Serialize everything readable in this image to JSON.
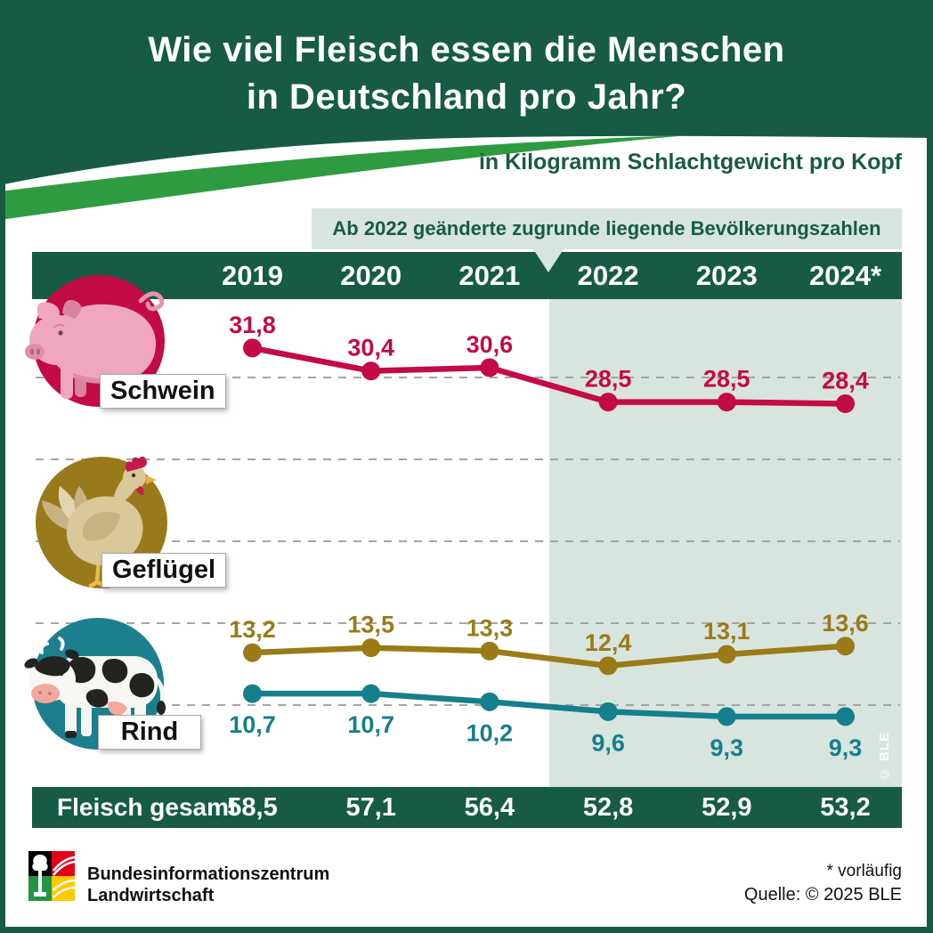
{
  "header": {
    "title_line1": "Wie viel Fleisch essen die Menschen",
    "title_line2": "in Deutschland pro Jahr?",
    "subtitle": "in Kilogramm Schlachtgewicht pro Kopf"
  },
  "note": {
    "text": "Ab 2022 geänderte zugrunde liegende Bevölkerungszahlen"
  },
  "chart_data": {
    "type": "line",
    "title": "Wie viel Fleisch essen die Menschen in Deutschland pro Jahr?",
    "unit": "Kilogramm Schlachtgewicht pro Kopf",
    "categories": [
      "2019",
      "2020",
      "2021",
      "2022",
      "2023",
      "2024*"
    ],
    "series": [
      {
        "name": "Schwein",
        "color": "#C30B45",
        "label_position": "above",
        "values": [
          "31,8",
          "30,4",
          "30,6",
          "28,5",
          "28,5",
          "28,4"
        ]
      },
      {
        "name": "Geflügel",
        "color": "#9A7B17",
        "label_position": "above",
        "values": [
          "13,2",
          "13,5",
          "13,3",
          "12,4",
          "13,1",
          "13,6"
        ]
      },
      {
        "name": "Rind",
        "color": "#157F8C",
        "label_position": "below",
        "values": [
          "10,7",
          "10,7",
          "10,2",
          "9,6",
          "9,3",
          "9,3"
        ]
      }
    ],
    "totals": {
      "label": "Fleisch gesamt",
      "values": [
        "58,5",
        "57,1",
        "56,4",
        "52,8",
        "52,9",
        "53,2"
      ]
    },
    "gridlines_kg": [
      30,
      25,
      20,
      15,
      10
    ],
    "ylim": [
      7,
      33
    ],
    "highlight_from": "2022",
    "highlight_note": "Ab 2022 geänderte zugrunde liegende Bevölkerungszahlen",
    "grid": "dashed-horizontal",
    "legend_position": "left-icons"
  },
  "watermark": "© BLE",
  "footer": {
    "org_line1": "Bundesinformationszentrum",
    "org_line2": "Landwirtschaft",
    "footnote": "* vorläufig",
    "source": "Quelle: © 2025 BLE"
  },
  "colors": {
    "dark_green": "#175B47",
    "swoosh_green": "#2F9B41",
    "sage_highlight": "#D8E4DE",
    "schwein_red": "#C30B45",
    "gefluegel_olive": "#9A7B17",
    "rind_teal": "#157F8C",
    "gridline_gray": "#A5A5A5"
  }
}
